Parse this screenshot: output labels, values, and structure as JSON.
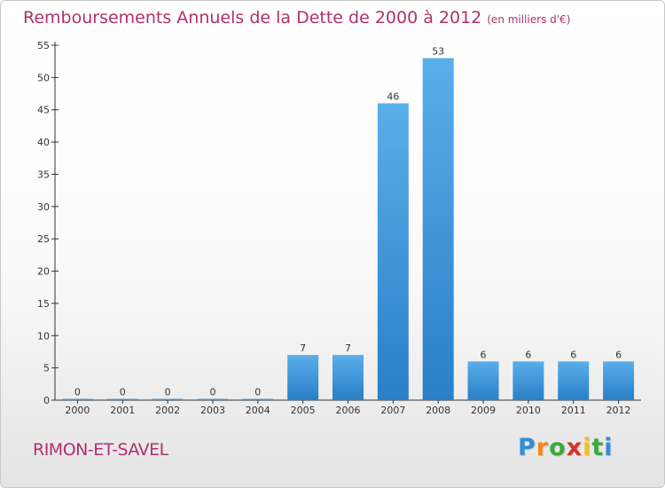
{
  "chart_data": {
    "type": "bar",
    "title": "Remboursements Annuels de la Dette de 2000 à 2012",
    "unit_note": "(en milliers d'€)",
    "categories": [
      "2000",
      "2001",
      "2002",
      "2003",
      "2004",
      "2005",
      "2006",
      "2007",
      "2008",
      "2009",
      "2010",
      "2011",
      "2012"
    ],
    "values": [
      0,
      0,
      0,
      0,
      0,
      7,
      7,
      46,
      53,
      6,
      6,
      6,
      6
    ],
    "xlabel": "",
    "ylabel": "",
    "ylim": [
      0,
      55
    ],
    "yticks": [
      0,
      5,
      10,
      15,
      20,
      25,
      30,
      35,
      40,
      45,
      50,
      55
    ],
    "grid": false,
    "bar_color": "#3a93d8"
  },
  "commune": "RIMON-ET-SAVEL",
  "logo": {
    "letters": [
      "P",
      "r",
      "o",
      "x",
      "i",
      "t",
      "i"
    ],
    "colors": [
      "#2e8fd6",
      "#f08a1c",
      "#3caa3c",
      "#d63030",
      "#f0c020",
      "#3caa3c",
      "#2e8fd6"
    ]
  }
}
